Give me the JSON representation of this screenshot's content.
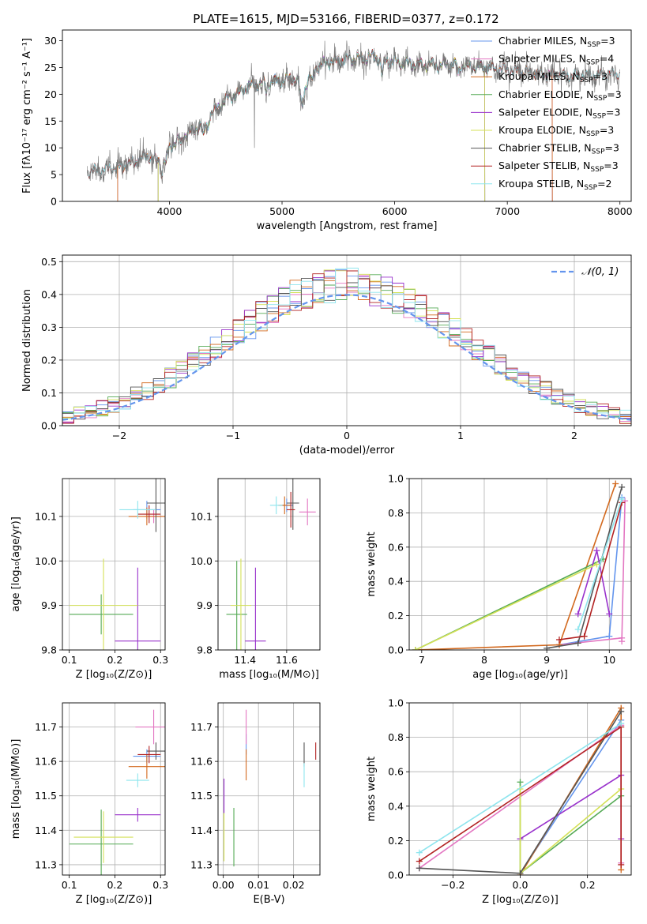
{
  "figure_title": "PLATE=1615, MJD=53166, FIBERID=0377, z=0.172",
  "colors": {
    "chabrier_miles": "#6495ed",
    "salpeter_miles": "#e377c2",
    "kroupa_miles": "#d2691e",
    "chabrier_elodie": "#55aa55",
    "salpeter_elodie": "#9932cc",
    "kroupa_elodie": "#d4e157",
    "chabrier_stelib": "#555555",
    "salpeter_stelib": "#b22222",
    "kroupa_stelib": "#8ee5ee"
  },
  "chart_data": [
    {
      "id": "spectrum",
      "type": "line",
      "xlabel": "wavelength [Angstrom, rest frame]",
      "ylabel": "Flux [fλ10⁻¹⁷ erg cm⁻² s⁻¹ A⁻¹]",
      "xlim": [
        3050,
        8100
      ],
      "ylim": [
        0,
        32
      ],
      "xticks": [
        4000,
        5000,
        6000,
        7000,
        8000
      ],
      "yticks": [
        0,
        5,
        10,
        15,
        20,
        25,
        30
      ],
      "legend_position": "right",
      "legend": [
        {
          "label": "Chabrier MILES, N",
          "sub": "SSP",
          "suffix": "=3",
          "color_key": "chabrier_miles"
        },
        {
          "label": "Salpeter MILES, N",
          "sub": "SSP",
          "suffix": "=4",
          "color_key": "salpeter_miles"
        },
        {
          "label": "Kroupa MILES, N",
          "sub": "SSP",
          "suffix": "=3",
          "color_key": "kroupa_miles"
        },
        {
          "label": "Chabrier ELODIE, N",
          "sub": "SSP",
          "suffix": "=3",
          "color_key": "chabrier_elodie"
        },
        {
          "label": "Salpeter ELODIE, N",
          "sub": "SSP",
          "suffix": "=3",
          "color_key": "salpeter_elodie"
        },
        {
          "label": "Kroupa ELODIE, N",
          "sub": "SSP",
          "suffix": "=3",
          "color_key": "kroupa_elodie"
        },
        {
          "label": "Chabrier STELIB, N",
          "sub": "SSP",
          "suffix": "=3",
          "color_key": "chabrier_stelib"
        },
        {
          "label": "Salpeter STELIB, N",
          "sub": "SSP",
          "suffix": "=3",
          "color_key": "salpeter_stelib"
        },
        {
          "label": "Kroupa STELIB, N",
          "sub": "SSP",
          "suffix": "=2",
          "color_key": "kroupa_stelib"
        }
      ],
      "continuum": [
        [
          3270,
          5.5
        ],
        [
          3400,
          6.0
        ],
        [
          3600,
          6.5
        ],
        [
          3700,
          7.5
        ],
        [
          3800,
          8.5
        ],
        [
          3900,
          7.5
        ],
        [
          4000,
          10.0
        ],
        [
          4100,
          12.0
        ],
        [
          4200,
          13.0
        ],
        [
          4300,
          14.5
        ],
        [
          4400,
          17.0
        ],
        [
          4500,
          19.0
        ],
        [
          4600,
          20.0
        ],
        [
          4700,
          21.5
        ],
        [
          4800,
          22.0
        ],
        [
          5000,
          22.5
        ],
        [
          5100,
          23.0
        ],
        [
          5200,
          21.5
        ],
        [
          5300,
          25.0
        ],
        [
          5400,
          26.0
        ],
        [
          5600,
          26.5
        ],
        [
          5800,
          27.0
        ],
        [
          6000,
          26.0
        ],
        [
          6200,
          25.5
        ],
        [
          6500,
          25.5
        ],
        [
          6800,
          25.0
        ],
        [
          7000,
          24.5
        ],
        [
          7200,
          24.0
        ],
        [
          7500,
          23.5
        ],
        [
          7800,
          23.5
        ],
        [
          8000,
          24.0
        ]
      ]
    },
    {
      "id": "residuals",
      "type": "histogram",
      "xlabel": "(data-model)/error",
      "ylabel": "Normed distribution",
      "xlim": [
        -2.5,
        2.5
      ],
      "ylim": [
        0,
        0.52
      ],
      "xticks": [
        -2,
        -1,
        0,
        1,
        2
      ],
      "yticks": [
        0.0,
        0.1,
        0.2,
        0.3,
        0.4,
        0.5
      ],
      "reference_curve": "𝒩(0, 1)",
      "legend_position": "top-right",
      "bin_width": 0.1,
      "bin_start": -2.5
    },
    {
      "id": "age_vs_Z",
      "type": "errorbar",
      "xlabel": "Z [log₁₀(Z/Z⊙)]",
      "ylabel": "age  [log₁₀(age/yr)]",
      "xlim": [
        0.085,
        0.31
      ],
      "ylim": [
        9.8,
        10.185
      ],
      "xticks": [
        0.1,
        0.2,
        0.3
      ],
      "yticks": [
        9.8,
        9.9,
        10.0,
        10.1
      ],
      "points": [
        {
          "key": "chabrier_miles",
          "x": 0.27,
          "xerr": 0.03,
          "y": 10.115,
          "yerr": 0.02
        },
        {
          "key": "salpeter_miles",
          "x": 0.285,
          "xerr": 0.02,
          "y": 10.1,
          "yerr": 0.015
        },
        {
          "key": "kroupa_miles",
          "x": 0.27,
          "xerr": 0.04,
          "y": 10.1,
          "yerr": 0.02
        },
        {
          "key": "chabrier_elodie",
          "x": 0.17,
          "xerr": 0.07,
          "y": 9.88,
          "yerr": 0.045
        },
        {
          "key": "salpeter_elodie",
          "x": 0.25,
          "xerr": 0.05,
          "y": 9.82,
          "yerr": 0.165
        },
        {
          "key": "kroupa_elodie",
          "x": 0.175,
          "xerr": 0.075,
          "y": 9.9,
          "yerr": 0.105
        },
        {
          "key": "chabrier_stelib",
          "x": 0.29,
          "xerr": 0.02,
          "y": 10.13,
          "yerr": 0.065
        },
        {
          "key": "salpeter_stelib",
          "x": 0.275,
          "xerr": 0.025,
          "y": 10.105,
          "yerr": 0.02
        },
        {
          "key": "kroupa_stelib",
          "x": 0.25,
          "xerr": 0.04,
          "y": 10.115,
          "yerr": 0.02
        }
      ]
    },
    {
      "id": "age_vs_mass",
      "type": "errorbar",
      "xlabel": "mass [log₁₀(M/M⊙)]",
      "ylabel": "",
      "xlim": [
        11.27,
        11.76
      ],
      "ylim": [
        9.8,
        10.185
      ],
      "xticks": [
        11.4,
        11.6
      ],
      "yticks": [
        9.8,
        9.9,
        10.0,
        10.1
      ],
      "points": [
        {
          "key": "chabrier_miles",
          "x": 11.6,
          "xerr": 0.03,
          "y": 10.125,
          "yerr": 0.015
        },
        {
          "key": "salpeter_miles",
          "x": 11.7,
          "xerr": 0.04,
          "y": 10.11,
          "yerr": 0.03
        },
        {
          "key": "kroupa_miles",
          "x": 11.59,
          "xerr": 0.03,
          "y": 10.125,
          "yerr": 0.02
        },
        {
          "key": "chabrier_elodie",
          "x": 11.36,
          "xerr": 0.05,
          "y": 9.88,
          "yerr": 0.12
        },
        {
          "key": "salpeter_elodie",
          "x": 11.45,
          "xerr": 0.05,
          "y": 9.82,
          "yerr": 0.165
        },
        {
          "key": "kroupa_elodie",
          "x": 11.38,
          "xerr": 0.05,
          "y": 9.9,
          "yerr": 0.105
        },
        {
          "key": "chabrier_stelib",
          "x": 11.63,
          "xerr": 0.03,
          "y": 10.13,
          "yerr": 0.06
        },
        {
          "key": "salpeter_stelib",
          "x": 11.62,
          "xerr": 0.02,
          "y": 10.115,
          "yerr": 0.04
        },
        {
          "key": "kroupa_stelib",
          "x": 11.55,
          "xerr": 0.03,
          "y": 10.125,
          "yerr": 0.02
        }
      ]
    },
    {
      "id": "massweight_vs_age",
      "type": "line",
      "xlabel": "age  [log₁₀(age/yr)]",
      "ylabel": "mass weight",
      "xlim": [
        6.8,
        10.35
      ],
      "ylim": [
        0,
        1.0
      ],
      "xticks": [
        7,
        8,
        9,
        10
      ],
      "yticks": [
        0.0,
        0.2,
        0.4,
        0.6,
        0.8,
        1.0
      ],
      "series": [
        {
          "key": "chabrier_miles",
          "x": [
            9.2,
            10.0,
            10.2
          ],
          "y": [
            0.03,
            0.08,
            0.89
          ]
        },
        {
          "key": "salpeter_miles",
          "x": [
            9.2,
            10.2,
            10.2,
            10.25
          ],
          "y": [
            0.03,
            0.07,
            0.05,
            0.87
          ]
        },
        {
          "key": "kroupa_miles",
          "x": [
            6.9,
            9.2,
            10.1
          ],
          "y": [
            0.0,
            0.03,
            0.97
          ]
        },
        {
          "key": "chabrier_elodie",
          "x": [
            6.9,
            9.9
          ],
          "y": [
            0.0,
            0.53
          ]
        },
        {
          "key": "salpeter_elodie",
          "x": [
            9.5,
            9.8,
            10.0
          ],
          "y": [
            0.21,
            0.58,
            0.21
          ]
        },
        {
          "key": "kroupa_elodie",
          "x": [
            6.9,
            9.8
          ],
          "y": [
            0.0,
            0.5
          ]
        },
        {
          "key": "chabrier_stelib",
          "x": [
            9.0,
            9.5,
            10.2
          ],
          "y": [
            0.01,
            0.04,
            0.95
          ]
        },
        {
          "key": "salpeter_stelib",
          "x": [
            9.2,
            9.6,
            10.2
          ],
          "y": [
            0.06,
            0.08,
            0.86
          ]
        },
        {
          "key": "kroupa_stelib",
          "x": [
            9.5,
            10.2
          ],
          "y": [
            0.12,
            0.88
          ]
        }
      ]
    },
    {
      "id": "mass_vs_Z",
      "type": "errorbar",
      "xlabel": "Z [log₁₀(Z/Z⊙)]",
      "ylabel": "mass [log₁₀(M/M⊙)]",
      "xlim": [
        0.085,
        0.31
      ],
      "ylim": [
        11.27,
        11.77
      ],
      "xticks": [
        0.1,
        0.2,
        0.3
      ],
      "yticks": [
        11.3,
        11.4,
        11.5,
        11.6,
        11.7
      ],
      "points": [
        {
          "key": "chabrier_miles",
          "x": 0.27,
          "xerr": 0.03,
          "y": 11.615,
          "yerr": 0.02
        },
        {
          "key": "salpeter_miles",
          "x": 0.285,
          "xerr": 0.04,
          "y": 11.7,
          "yerr": 0.05
        },
        {
          "key": "kroupa_miles",
          "x": 0.27,
          "xerr": 0.04,
          "y": 11.585,
          "yerr": 0.035
        },
        {
          "key": "chabrier_elodie",
          "x": 0.17,
          "xerr": 0.07,
          "y": 11.36,
          "yerr": 0.1
        },
        {
          "key": "salpeter_elodie",
          "x": 0.25,
          "xerr": 0.05,
          "y": 11.445,
          "yerr": 0.02
        },
        {
          "key": "kroupa_elodie",
          "x": 0.175,
          "xerr": 0.065,
          "y": 11.38,
          "yerr": 0.075
        },
        {
          "key": "chabrier_stelib",
          "x": 0.29,
          "xerr": 0.02,
          "y": 11.63,
          "yerr": 0.025
        },
        {
          "key": "salpeter_stelib",
          "x": 0.275,
          "xerr": 0.025,
          "y": 11.62,
          "yerr": 0.025
        },
        {
          "key": "kroupa_stelib",
          "x": 0.25,
          "xerr": 0.025,
          "y": 11.545,
          "yerr": 0.02
        }
      ]
    },
    {
      "id": "mass_vs_ebv",
      "type": "errorbar",
      "xlabel": "E(B-V)",
      "ylabel": "",
      "xlim": [
        -0.0015,
        0.0275
      ],
      "ylim": [
        11.27,
        11.77
      ],
      "xticks": [
        0.0,
        0.01,
        0.02
      ],
      "yticks": [
        11.3,
        11.4,
        11.5,
        11.6,
        11.7
      ],
      "points": [
        {
          "key": "chabrier_miles",
          "x": 0.0065,
          "xerr": 0,
          "y": 11.65,
          "yerr": 0.03
        },
        {
          "key": "salpeter_miles",
          "x": 0.0065,
          "xerr": 0,
          "y": 11.7,
          "yerr": 0.05
        },
        {
          "key": "kroupa_miles",
          "x": 0.0065,
          "xerr": 0,
          "y": 11.59,
          "yerr": 0.045
        },
        {
          "key": "chabrier_elodie",
          "x": 0.003,
          "xerr": 0,
          "y": 11.38,
          "yerr": 0.085
        },
        {
          "key": "salpeter_elodie",
          "x": 0.0002,
          "xerr": 0,
          "y": 11.5,
          "yerr": 0.05
        },
        {
          "key": "kroupa_elodie",
          "x": 0.0002,
          "xerr": 0,
          "y": 11.38,
          "yerr": 0.07
        },
        {
          "key": "chabrier_stelib",
          "x": 0.023,
          "xerr": 0,
          "y": 11.62,
          "yerr": 0.035
        },
        {
          "key": "salpeter_stelib",
          "x": 0.0263,
          "xerr": 0,
          "y": 11.63,
          "yerr": 0.025
        },
        {
          "key": "kroupa_stelib",
          "x": 0.023,
          "xerr": 0,
          "y": 11.56,
          "yerr": 0.035
        }
      ]
    },
    {
      "id": "massweight_vs_Z",
      "type": "line",
      "xlabel": "Z [log₁₀(Z/Z⊙)]",
      "ylabel": "mass weight",
      "xlim": [
        -0.33,
        0.33
      ],
      "ylim": [
        0,
        1.0
      ],
      "xticks": [
        -0.2,
        0.0,
        0.2
      ],
      "yticks": [
        0.0,
        0.2,
        0.4,
        0.6,
        0.8,
        1.0
      ],
      "series": [
        {
          "key": "chabrier_miles",
          "x": [
            0.0,
            0.3
          ],
          "y": [
            0.01,
            0.9
          ]
        },
        {
          "key": "salpeter_miles",
          "x": [
            -0.3,
            0.3,
            0.3
          ],
          "y": [
            0.04,
            0.87,
            0.07
          ]
        },
        {
          "key": "kroupa_miles",
          "x": [
            0.0,
            0.3,
            0.3
          ],
          "y": [
            0.0,
            0.97,
            0.03
          ]
        },
        {
          "key": "chabrier_elodie",
          "x": [
            0.0,
            0.0,
            0.3
          ],
          "y": [
            0.54,
            0.01,
            0.46
          ]
        },
        {
          "key": "salpeter_elodie",
          "x": [
            0.0,
            0.3,
            0.3
          ],
          "y": [
            0.21,
            0.58,
            0.21
          ]
        },
        {
          "key": "kroupa_elodie",
          "x": [
            0.0,
            0.0,
            0.3
          ],
          "y": [
            0.5,
            0.01,
            0.5
          ]
        },
        {
          "key": "chabrier_stelib",
          "x": [
            -0.3,
            0.0,
            0.3
          ],
          "y": [
            0.04,
            0.01,
            0.95
          ]
        },
        {
          "key": "salpeter_stelib",
          "x": [
            -0.3,
            0.3,
            0.3
          ],
          "y": [
            0.08,
            0.86,
            0.06
          ]
        },
        {
          "key": "kroupa_stelib",
          "x": [
            -0.3,
            0.3
          ],
          "y": [
            0.13,
            0.88
          ]
        }
      ]
    }
  ]
}
